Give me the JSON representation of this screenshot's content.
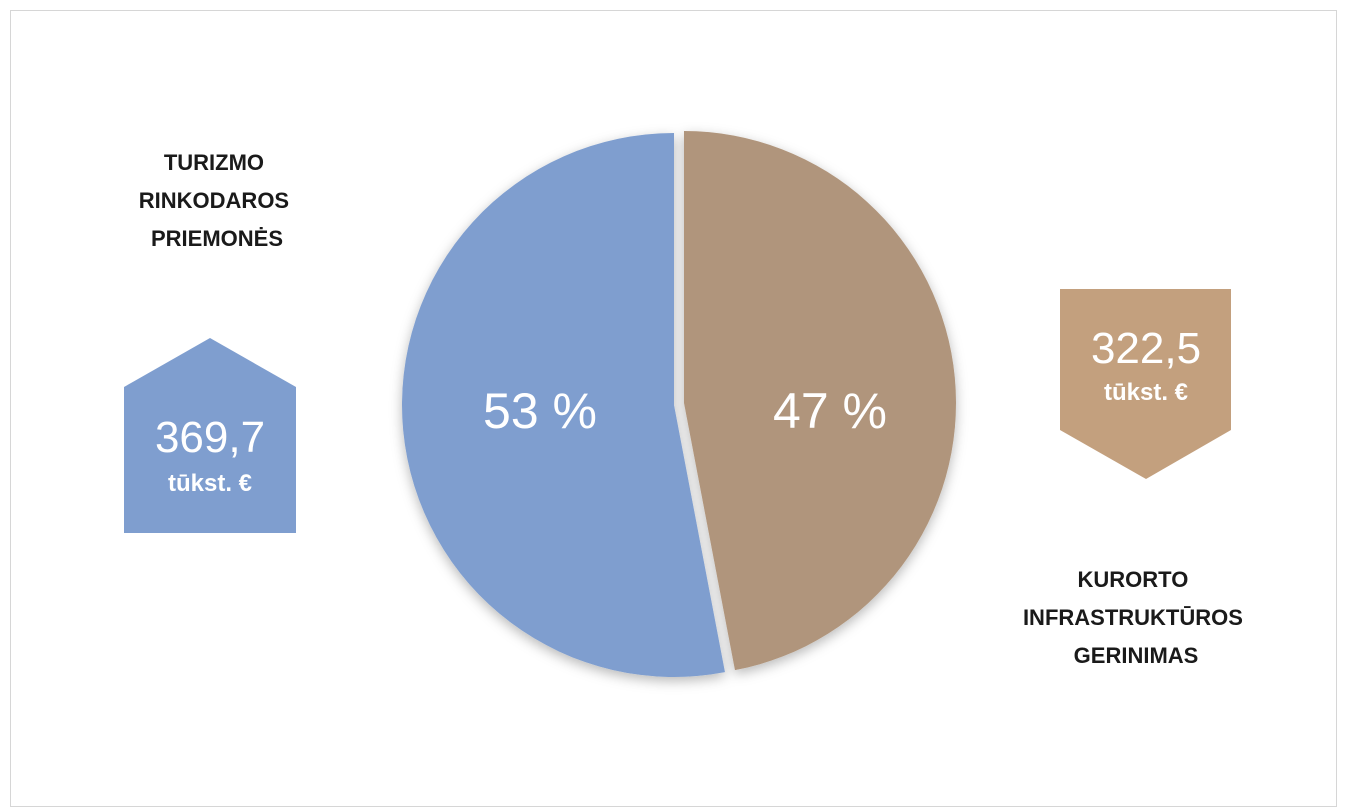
{
  "chart_data": {
    "type": "pie",
    "colors": {
      "slice_blue": "#7f9ecf",
      "slice_brown": "#b0957b",
      "badge_blue": "#7f9ecf",
      "badge_brown": "#c3a07e"
    },
    "slices": [
      {
        "label_lines": [
          "TURIZMO",
          "RINKODAROS",
          "PRIEMONĖS"
        ],
        "percent": 53,
        "percent_label": "53 %",
        "value": "369,7",
        "unit": "tūkst. €"
      },
      {
        "label_lines": [
          "KURORTO",
          "INFRASTRUKTŪROS",
          "GERINIMAS"
        ],
        "percent": 47,
        "percent_label": "47 %",
        "value": "322,5",
        "unit": "tūkst. €"
      }
    ]
  }
}
